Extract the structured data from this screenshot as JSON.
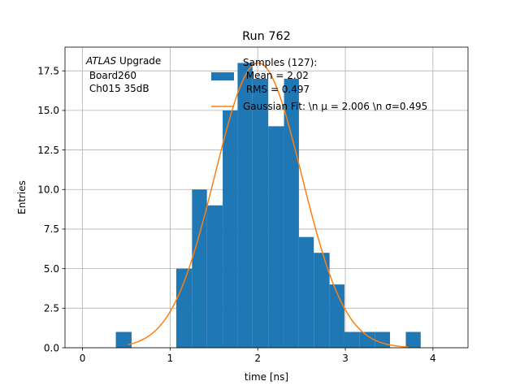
{
  "chart_data": {
    "type": "bar",
    "title": "Run 762",
    "xlabel": "time [ns]",
    "ylabel": "Entries",
    "xlim": [
      -0.2,
      4.4
    ],
    "ylim": [
      0,
      19
    ],
    "x_ticks": [
      0,
      1,
      2,
      3,
      4
    ],
    "y_ticks": [
      0.0,
      2.5,
      5.0,
      7.5,
      10.0,
      12.5,
      15.0,
      17.5
    ],
    "grid": true,
    "annotation": {
      "lines": [
        {
          "italic": "ATLAS",
          "rest": " Upgrade"
        },
        {
          "italic": "",
          "rest": " Board260"
        },
        {
          "italic": "",
          "rest": " Ch015 35dB"
        }
      ]
    },
    "legend": {
      "placement": "top-right",
      "entries": [
        {
          "kind": "patch",
          "lines": [
            "Samples (127):",
            " Mean = 2.02",
            " RMS = 0.497"
          ]
        },
        {
          "kind": "line",
          "lines": [
            "Gaussian Fit: \\n μ = 2.006 \\n σ=0.495"
          ]
        }
      ]
    },
    "histogram": {
      "name": "Samples (127):",
      "color": "#1f77b4",
      "bins": [
        {
          "x0": 0.38,
          "x1": 0.56,
          "count": 1
        },
        {
          "x0": 1.07,
          "x1": 1.25,
          "count": 5
        },
        {
          "x0": 1.25,
          "x1": 1.42,
          "count": 10
        },
        {
          "x0": 1.42,
          "x1": 1.6,
          "count": 9
        },
        {
          "x0": 1.6,
          "x1": 1.77,
          "count": 15
        },
        {
          "x0": 1.77,
          "x1": 1.94,
          "count": 18
        },
        {
          "x0": 1.94,
          "x1": 2.12,
          "count": 17
        },
        {
          "x0": 2.12,
          "x1": 2.3,
          "count": 14
        },
        {
          "x0": 2.3,
          "x1": 2.47,
          "count": 17
        },
        {
          "x0": 2.47,
          "x1": 2.64,
          "count": 7
        },
        {
          "x0": 2.64,
          "x1": 2.82,
          "count": 6
        },
        {
          "x0": 2.82,
          "x1": 2.99,
          "count": 4
        },
        {
          "x0": 2.99,
          "x1": 3.16,
          "count": 1
        },
        {
          "x0": 3.16,
          "x1": 3.34,
          "count": 1
        },
        {
          "x0": 3.34,
          "x1": 3.51,
          "count": 1
        },
        {
          "x0": 3.69,
          "x1": 3.86,
          "count": 1
        }
      ]
    },
    "fit": {
      "name": "Gaussian Fit",
      "color": "#ff7f0e",
      "mu": 2.006,
      "sigma": 0.495,
      "amplitude": 18.0,
      "x_range": [
        0.52,
        3.72
      ]
    }
  }
}
